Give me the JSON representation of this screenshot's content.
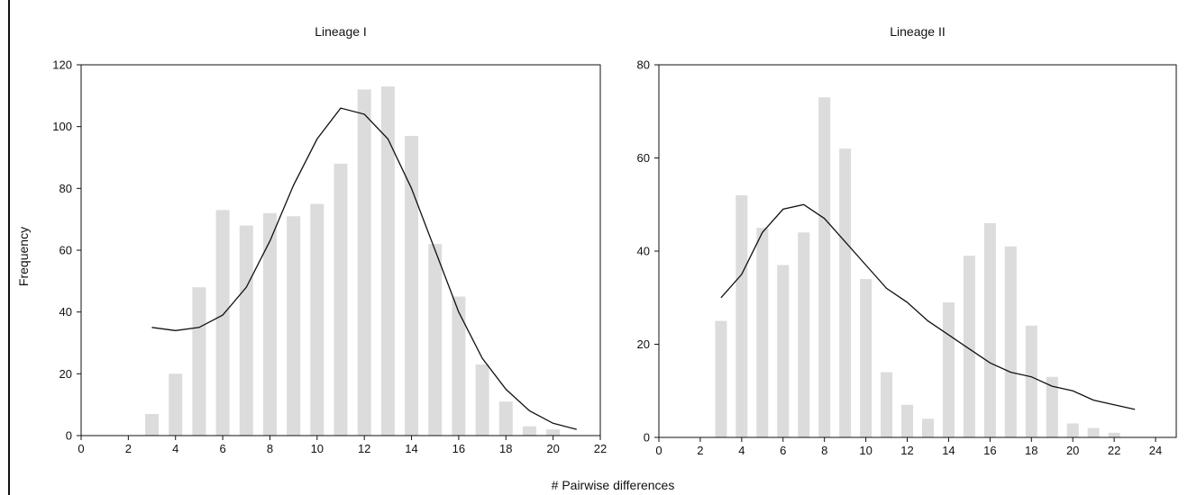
{
  "figure": {
    "shared_ylabel": "Frequency",
    "shared_xlabel": "# Pairwise differences",
    "bar_color": "#dcdcdc",
    "line_color": "#111111"
  },
  "chart_data": [
    {
      "type": "bar",
      "title": "Lineage I",
      "xlabel": "# Pairwise differences",
      "ylabel": "Frequency",
      "xlim": [
        0,
        22
      ],
      "ylim": [
        0,
        120
      ],
      "xticks": [
        0,
        2,
        4,
        6,
        8,
        10,
        12,
        14,
        16,
        18,
        20,
        22
      ],
      "yticks": [
        0,
        20,
        40,
        60,
        80,
        100,
        120
      ],
      "grid": false,
      "bars": {
        "x": [
          3,
          4,
          5,
          6,
          7,
          8,
          9,
          10,
          11,
          12,
          13,
          14,
          15,
          16,
          17,
          18,
          19,
          20
        ],
        "values": [
          7,
          20,
          48,
          73,
          68,
          72,
          71,
          75,
          88,
          112,
          113,
          97,
          62,
          45,
          23,
          11,
          3,
          2
        ]
      },
      "line": {
        "x": [
          3,
          4,
          5,
          6,
          7,
          8,
          9,
          10,
          11,
          12,
          13,
          14,
          15,
          16,
          17,
          18,
          19,
          20,
          21
        ],
        "values": [
          35,
          34,
          35,
          39,
          48,
          63,
          81,
          96,
          106,
          104,
          96,
          80,
          60,
          40,
          25,
          15,
          8,
          4,
          2
        ]
      }
    },
    {
      "type": "bar",
      "title": "Lineage II",
      "xlabel": "# Pairwise differences",
      "ylabel": "Frequency",
      "xlim": [
        0,
        25
      ],
      "ylim": [
        0,
        80
      ],
      "xticks": [
        0,
        2,
        4,
        6,
        8,
        10,
        12,
        14,
        16,
        18,
        20,
        22,
        24
      ],
      "yticks": [
        0,
        20,
        40,
        60,
        80
      ],
      "grid": false,
      "bars": {
        "x": [
          3,
          4,
          5,
          6,
          7,
          8,
          9,
          10,
          11,
          12,
          13,
          14,
          15,
          16,
          17,
          18,
          19,
          20,
          21,
          22
        ],
        "values": [
          25,
          52,
          45,
          37,
          44,
          73,
          62,
          34,
          14,
          7,
          4,
          29,
          39,
          46,
          41,
          24,
          13,
          3,
          2,
          1
        ]
      },
      "line": {
        "x": [
          3,
          4,
          5,
          6,
          7,
          8,
          9,
          10,
          11,
          12,
          13,
          14,
          15,
          16,
          17,
          18,
          19,
          20,
          21,
          22,
          23
        ],
        "values": [
          30,
          35,
          44,
          49,
          50,
          47,
          42,
          37,
          32,
          29,
          25,
          22,
          19,
          16,
          14,
          13,
          11,
          10,
          8,
          7,
          6
        ]
      }
    }
  ]
}
